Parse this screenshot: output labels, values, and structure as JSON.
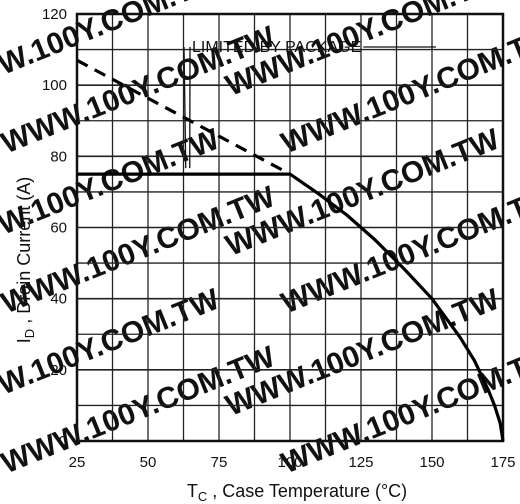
{
  "chart_data": {
    "type": "line",
    "title": "",
    "xlabel": {
      "main": "T",
      "sub": "C",
      "rest": " , Case Temperature (°C)"
    },
    "ylabel": {
      "main": "I",
      "sub": "D",
      "rest": " , Drain Current (A)"
    },
    "xlim": [
      25,
      175
    ],
    "ylim": [
      0,
      120
    ],
    "x_ticks": [
      25,
      50,
      75,
      100,
      125,
      150,
      175
    ],
    "y_ticks": [
      0,
      20,
      40,
      60,
      80,
      100,
      120
    ],
    "x_tick_labels": [
      "25",
      "50",
      "75",
      "100",
      "125",
      "150",
      "175"
    ],
    "y_tick_labels": [
      "0",
      "20",
      "40",
      "60",
      "80",
      "100",
      "120"
    ],
    "grid": true,
    "series": [
      {
        "style": "dashed",
        "x": [
          25,
          100
        ],
        "y": [
          107,
          75
        ]
      },
      {
        "style": "solid",
        "x": [
          25,
          100
        ],
        "y": [
          75,
          75
        ]
      },
      {
        "style": "solid",
        "x": [
          100,
          110,
          120,
          130,
          140,
          150,
          160,
          165,
          170,
          172,
          174,
          175
        ],
        "y": [
          75,
          69.5,
          63.5,
          56.5,
          48.5,
          40,
          29,
          22.5,
          14,
          10,
          5,
          0
        ]
      }
    ],
    "annotations": [
      {
        "text": "LIMITED BY PACKAGE",
        "x": 64,
        "y": 75
      }
    ],
    "watermark": "WWW.100Y.COM.TW"
  }
}
